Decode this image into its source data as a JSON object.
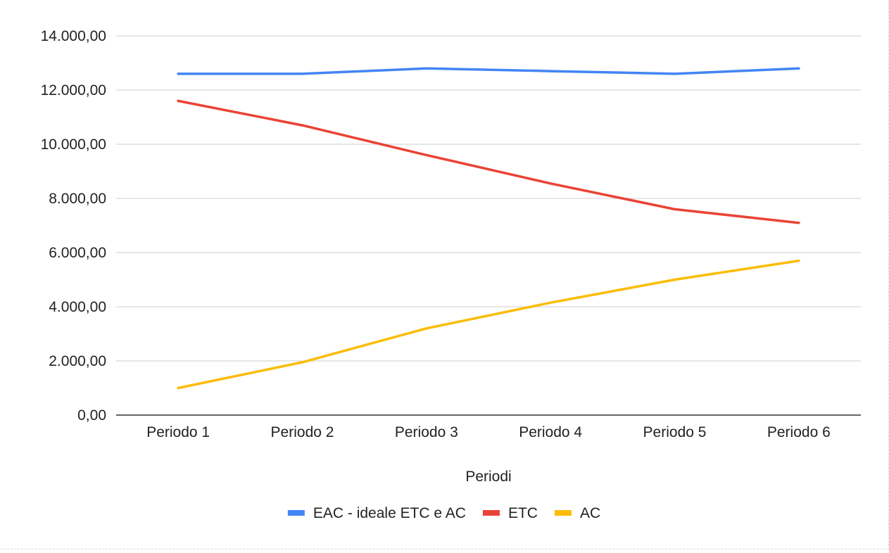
{
  "chart_data": {
    "type": "line",
    "title": "",
    "xlabel": "Periodi",
    "ylabel": "",
    "categories": [
      "Periodo 1",
      "Periodo 2",
      "Periodo 3",
      "Periodo 4",
      "Periodo 5",
      "Periodo 6"
    ],
    "ylim": [
      0,
      14000
    ],
    "y_ticks": [
      0,
      2000,
      4000,
      6000,
      8000,
      10000,
      12000,
      14000
    ],
    "y_tick_labels": [
      "0,00",
      "2.000,00",
      "4.000,00",
      "6.000,00",
      "8.000,00",
      "10.000,00",
      "12.000,00",
      "14.000,00"
    ],
    "grid": true,
    "legend_position": "bottom",
    "series": [
      {
        "name": "EAC - ideale ETC e AC",
        "color": "#4285f4",
        "values": [
          12600,
          12600,
          12800,
          12700,
          12600,
          12800
        ]
      },
      {
        "name": "ETC",
        "color": "#ea4335",
        "values": [
          11600,
          10700,
          9600,
          8550,
          7600,
          7100
        ]
      },
      {
        "name": "AC",
        "color": "#fbbc04",
        "values": [
          1000,
          1950,
          3200,
          4150,
          5000,
          5700
        ]
      }
    ]
  }
}
